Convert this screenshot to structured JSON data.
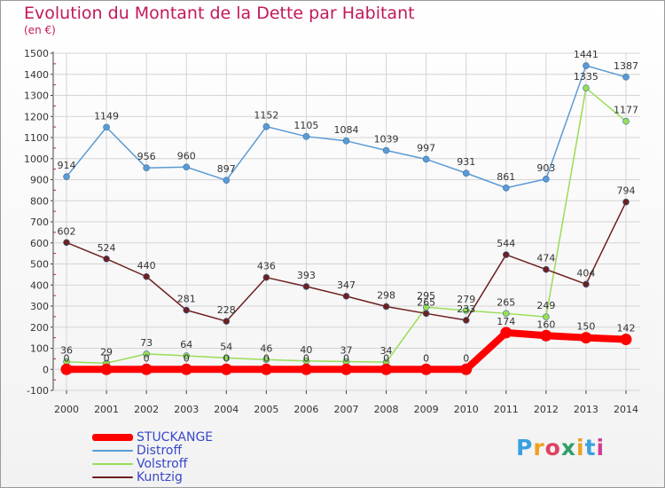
{
  "title": "Evolution du Montant de la Dette par Habitant",
  "unit": "(en €)",
  "logo": "Proxiti",
  "chart_data": {
    "type": "line",
    "x": [
      "2000",
      "2001",
      "2002",
      "2003",
      "2004",
      "2005",
      "2006",
      "2007",
      "2008",
      "2009",
      "2010",
      "2011",
      "2012",
      "2013",
      "2014"
    ],
    "ylim": [
      -100,
      1500
    ],
    "yticks": [
      -100,
      0,
      100,
      200,
      300,
      400,
      500,
      600,
      700,
      800,
      900,
      1000,
      1100,
      1200,
      1300,
      1400,
      1500
    ],
    "grid": true,
    "legend_position": "bottom-left",
    "series": [
      {
        "name": "STUCKANGE",
        "color": "#ff0000",
        "values": [
          0,
          0,
          0,
          0,
          0,
          0,
          0,
          0,
          0,
          0,
          0,
          174,
          160,
          150,
          142
        ]
      },
      {
        "name": "Distroff",
        "color": "#5b9bd5",
        "values": [
          914,
          1149,
          956,
          960,
          897,
          1152,
          1105,
          1084,
          1039,
          997,
          931,
          861,
          903,
          1441,
          1387
        ]
      },
      {
        "name": "Volstroff",
        "color": "#99dd55",
        "values": [
          36,
          29,
          73,
          64,
          54,
          46,
          40,
          37,
          34,
          295,
          279,
          265,
          249,
          1335,
          1177
        ]
      },
      {
        "name": "Kuntzig",
        "color": "#6e1f1f",
        "values": [
          602,
          524,
          440,
          281,
          228,
          436,
          393,
          347,
          298,
          265,
          233,
          544,
          474,
          404,
          794
        ]
      }
    ]
  }
}
